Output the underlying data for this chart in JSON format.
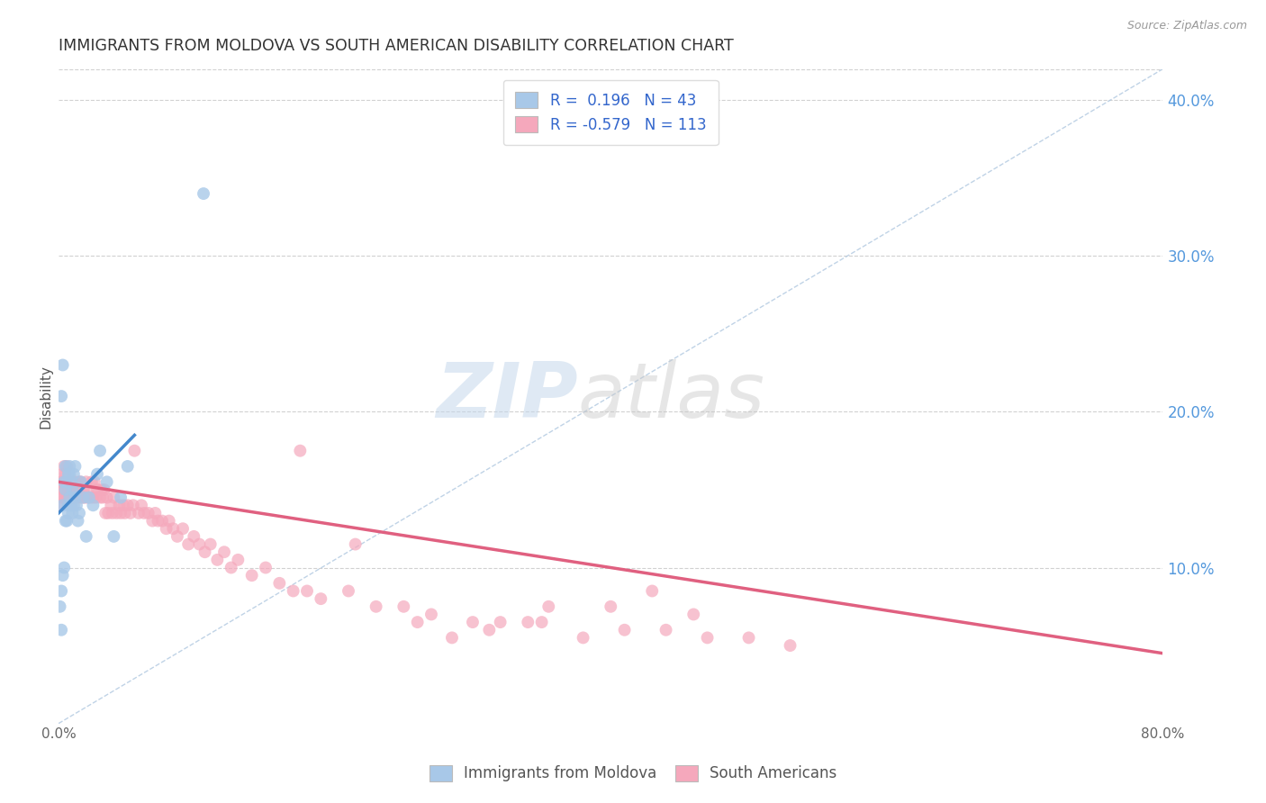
{
  "title": "IMMIGRANTS FROM MOLDOVA VS SOUTH AMERICAN DISABILITY CORRELATION CHART",
  "source": "Source: ZipAtlas.com",
  "ylabel": "Disability",
  "xlim": [
    0.0,
    0.8
  ],
  "ylim": [
    0.0,
    0.42
  ],
  "yticks_right": [
    0.1,
    0.2,
    0.3,
    0.4
  ],
  "ytick_labels_right": [
    "10.0%",
    "20.0%",
    "30.0%",
    "40.0%"
  ],
  "legend_r1": "R =  0.196   N = 43",
  "legend_r2": "R = -0.579   N = 113",
  "blue_color": "#a8c8e8",
  "pink_color": "#f5a8bc",
  "blue_line_color": "#4488cc",
  "pink_line_color": "#e06080",
  "dashed_line_color": "#b0c8e0",
  "watermark_zip": "ZIP",
  "watermark_atlas": "atlas",
  "title_fontsize": 12.5,
  "moldova_scatter_x": [
    0.001,
    0.002,
    0.002,
    0.003,
    0.003,
    0.004,
    0.004,
    0.005,
    0.005,
    0.005,
    0.006,
    0.006,
    0.007,
    0.007,
    0.007,
    0.008,
    0.008,
    0.008,
    0.009,
    0.009,
    0.01,
    0.01,
    0.011,
    0.011,
    0.012,
    0.012,
    0.013,
    0.014,
    0.015,
    0.016,
    0.018,
    0.02,
    0.022,
    0.025,
    0.028,
    0.03,
    0.035,
    0.04,
    0.045,
    0.05,
    0.002,
    0.003,
    0.105
  ],
  "moldova_scatter_y": [
    0.075,
    0.06,
    0.085,
    0.095,
    0.14,
    0.1,
    0.155,
    0.13,
    0.15,
    0.165,
    0.13,
    0.155,
    0.14,
    0.16,
    0.135,
    0.145,
    0.16,
    0.165,
    0.14,
    0.155,
    0.135,
    0.15,
    0.14,
    0.16,
    0.145,
    0.165,
    0.14,
    0.13,
    0.135,
    0.155,
    0.145,
    0.12,
    0.145,
    0.14,
    0.16,
    0.175,
    0.155,
    0.12,
    0.145,
    0.165,
    0.21,
    0.23,
    0.34
  ],
  "moldova_trend_x": [
    0.0,
    0.055
  ],
  "moldova_trend_y": [
    0.135,
    0.185
  ],
  "south_scatter_x": [
    0.001,
    0.002,
    0.002,
    0.003,
    0.003,
    0.004,
    0.004,
    0.004,
    0.005,
    0.005,
    0.005,
    0.006,
    0.006,
    0.006,
    0.007,
    0.007,
    0.008,
    0.008,
    0.009,
    0.009,
    0.01,
    0.01,
    0.011,
    0.011,
    0.012,
    0.012,
    0.013,
    0.014,
    0.015,
    0.015,
    0.016,
    0.017,
    0.018,
    0.019,
    0.02,
    0.021,
    0.022,
    0.023,
    0.024,
    0.025,
    0.026,
    0.027,
    0.028,
    0.03,
    0.031,
    0.032,
    0.033,
    0.034,
    0.035,
    0.036,
    0.038,
    0.039,
    0.04,
    0.042,
    0.044,
    0.045,
    0.047,
    0.048,
    0.05,
    0.052,
    0.054,
    0.055,
    0.058,
    0.06,
    0.062,
    0.065,
    0.068,
    0.07,
    0.072,
    0.075,
    0.078,
    0.08,
    0.083,
    0.086,
    0.09,
    0.094,
    0.098,
    0.102,
    0.106,
    0.11,
    0.115,
    0.12,
    0.125,
    0.13,
    0.14,
    0.15,
    0.16,
    0.17,
    0.18,
    0.19,
    0.21,
    0.23,
    0.25,
    0.27,
    0.3,
    0.32,
    0.35,
    0.38,
    0.41,
    0.44,
    0.47,
    0.5,
    0.53,
    0.4,
    0.43,
    0.46,
    0.355,
    0.175,
    0.26,
    0.215,
    0.285,
    0.312,
    0.34
  ],
  "south_scatter_y": [
    0.14,
    0.155,
    0.145,
    0.15,
    0.16,
    0.15,
    0.145,
    0.165,
    0.155,
    0.145,
    0.16,
    0.155,
    0.145,
    0.165,
    0.15,
    0.145,
    0.15,
    0.145,
    0.15,
    0.145,
    0.15,
    0.145,
    0.155,
    0.145,
    0.155,
    0.145,
    0.15,
    0.145,
    0.155,
    0.145,
    0.155,
    0.145,
    0.15,
    0.145,
    0.155,
    0.145,
    0.15,
    0.145,
    0.155,
    0.145,
    0.155,
    0.145,
    0.15,
    0.145,
    0.15,
    0.145,
    0.15,
    0.135,
    0.145,
    0.135,
    0.14,
    0.135,
    0.145,
    0.135,
    0.14,
    0.135,
    0.14,
    0.135,
    0.14,
    0.135,
    0.14,
    0.175,
    0.135,
    0.14,
    0.135,
    0.135,
    0.13,
    0.135,
    0.13,
    0.13,
    0.125,
    0.13,
    0.125,
    0.12,
    0.125,
    0.115,
    0.12,
    0.115,
    0.11,
    0.115,
    0.105,
    0.11,
    0.1,
    0.105,
    0.095,
    0.1,
    0.09,
    0.085,
    0.085,
    0.08,
    0.085,
    0.075,
    0.075,
    0.07,
    0.065,
    0.065,
    0.065,
    0.055,
    0.06,
    0.06,
    0.055,
    0.055,
    0.05,
    0.075,
    0.085,
    0.07,
    0.075,
    0.175,
    0.065,
    0.115,
    0.055,
    0.06,
    0.065
  ],
  "south_trend_x": [
    0.0,
    0.8
  ],
  "south_trend_y": [
    0.155,
    0.045
  ],
  "dashed_trend_x": [
    0.0,
    0.8
  ],
  "dashed_trend_y": [
    0.0,
    0.42
  ]
}
